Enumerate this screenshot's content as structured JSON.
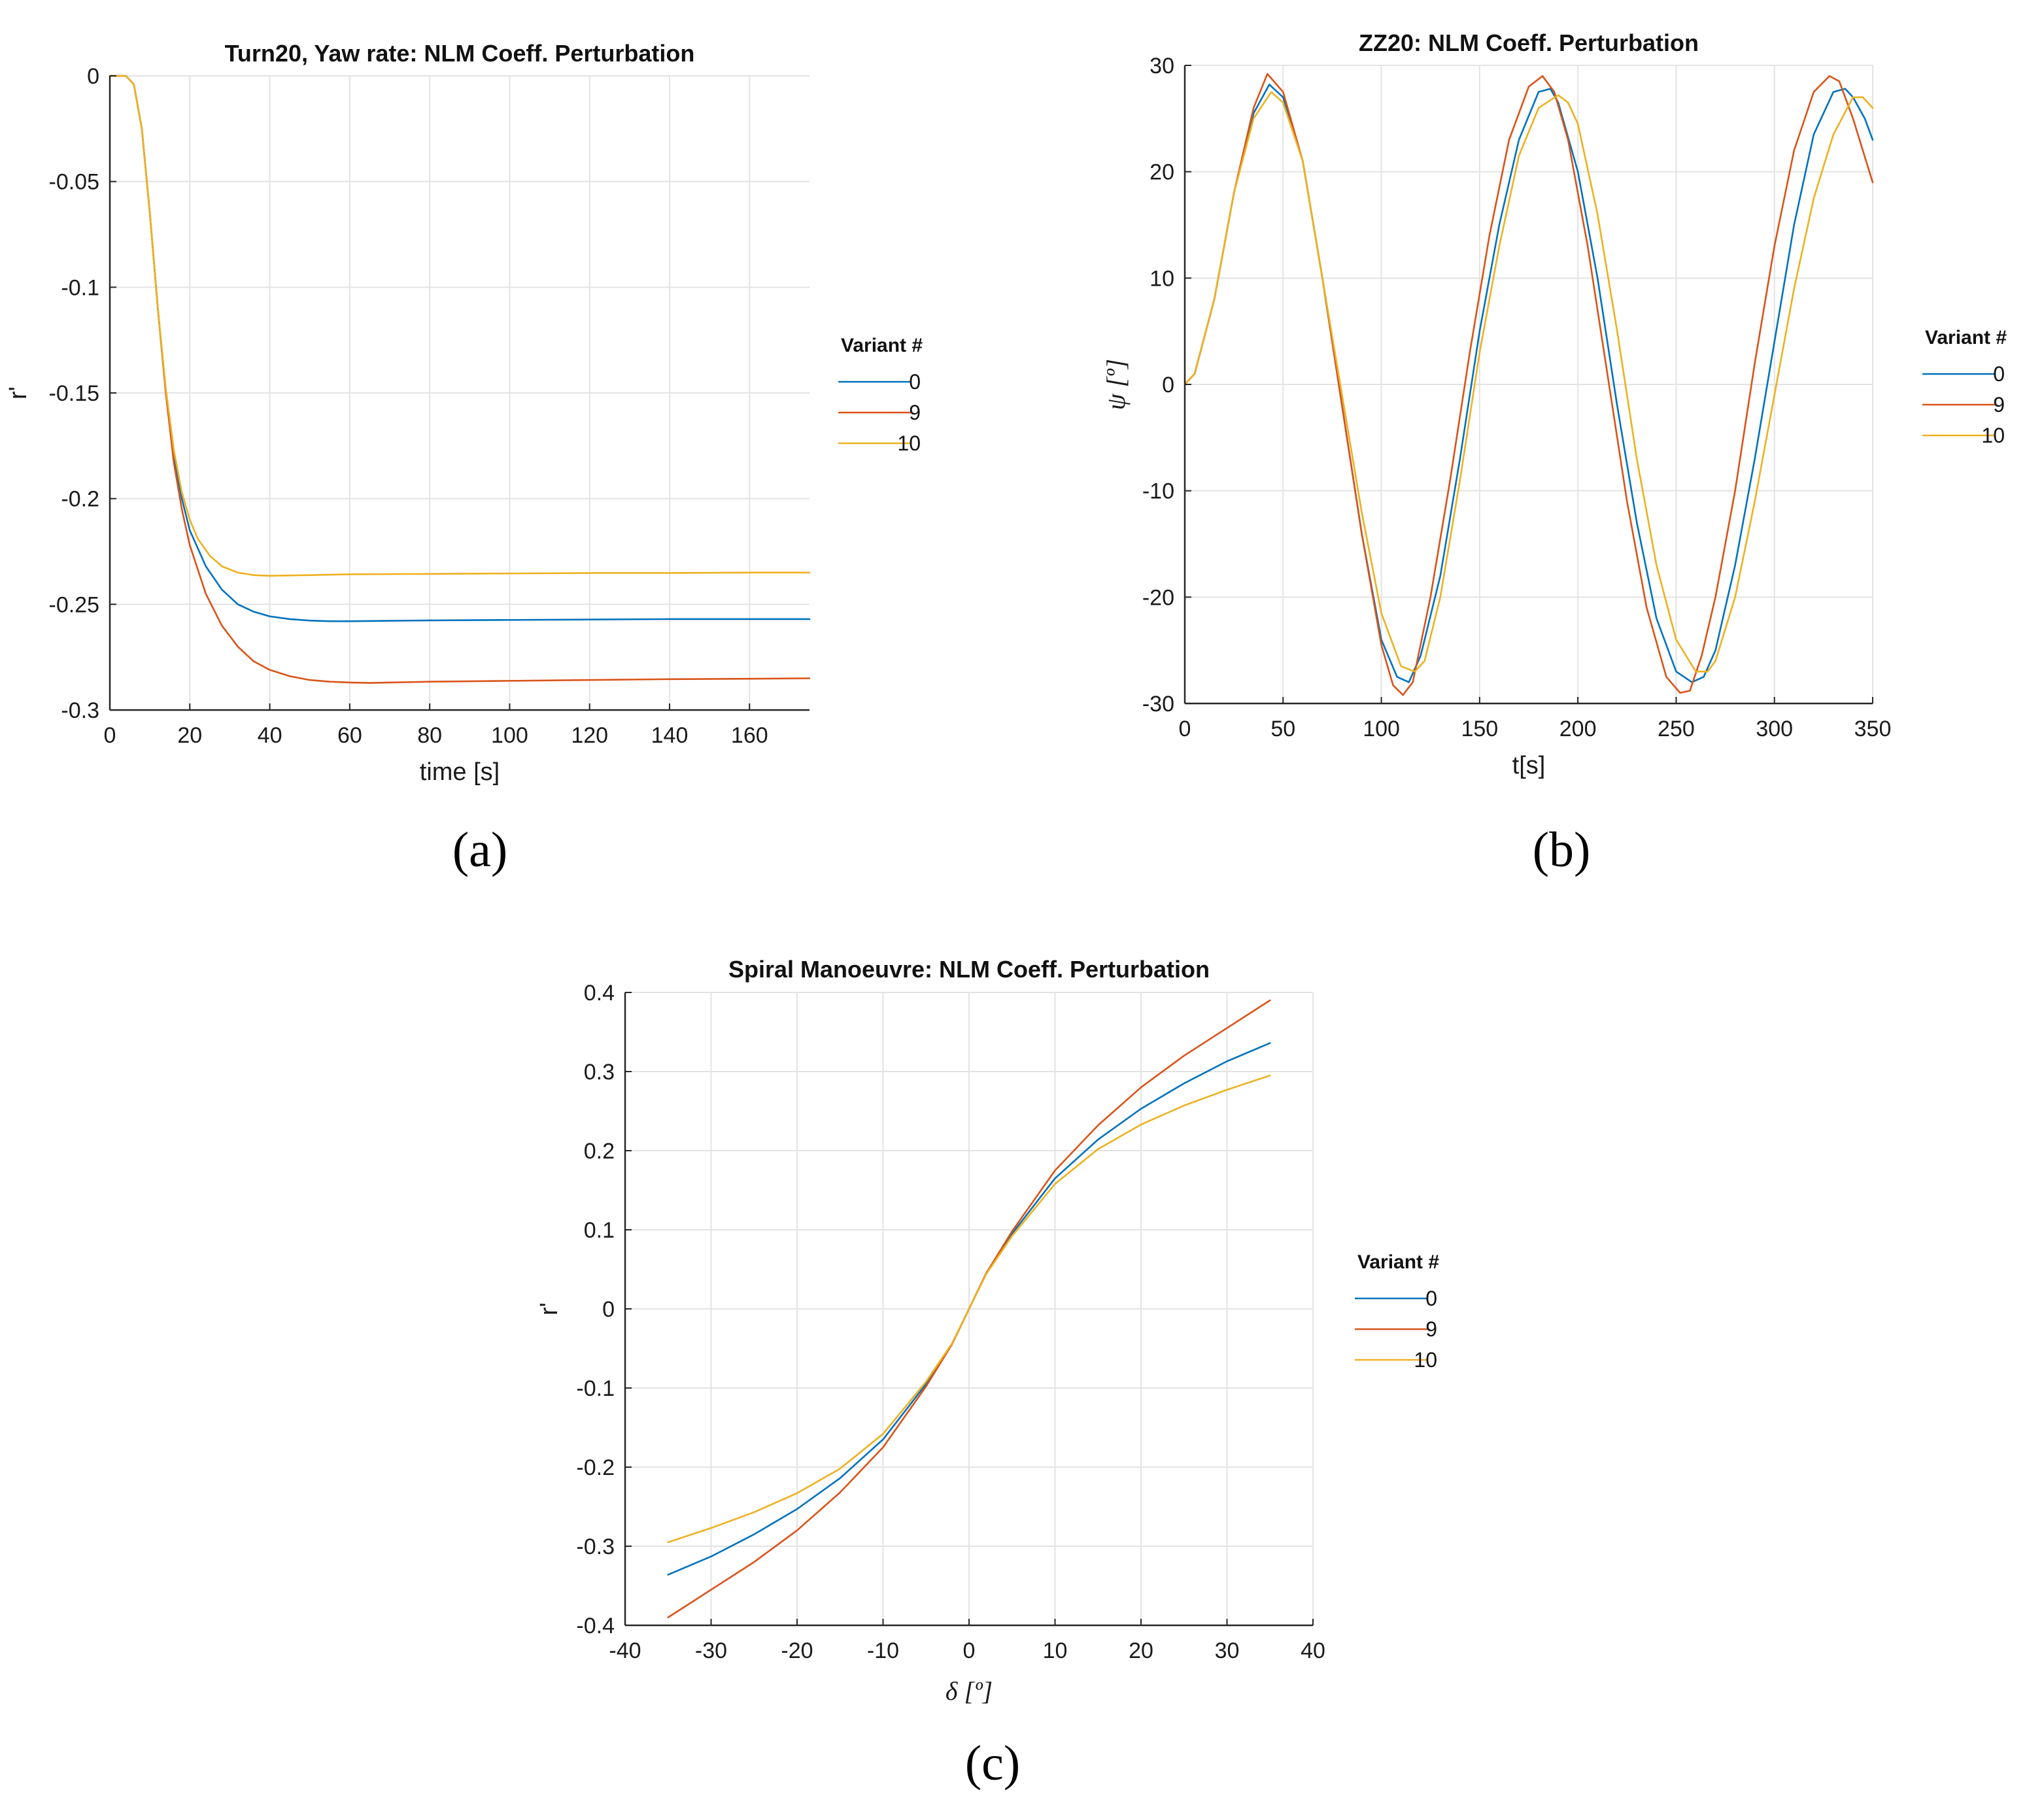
{
  "chart_data": [
    {
      "id": "a",
      "type": "line",
      "panel_tag": "(a)",
      "title": "Turn20, Yaw rate: NLM Coeff. Perturbation",
      "xlabel": "time [s]",
      "ylabel": "r'",
      "xlim": [
        0,
        175
      ],
      "ylim": [
        -0.3,
        0
      ],
      "xticks": [
        0,
        20,
        40,
        60,
        80,
        100,
        120,
        140,
        160
      ],
      "yticks": [
        0,
        -0.05,
        -0.1,
        -0.15,
        -0.2,
        -0.25,
        -0.3
      ],
      "xtick_labels": [
        "0",
        "20",
        "40",
        "60",
        "80",
        "100",
        "120",
        "140",
        "160"
      ],
      "ytick_labels": [
        "0",
        "-0.05",
        "-0.1",
        "-0.15",
        "-0.2",
        "-0.25",
        "-0.3"
      ],
      "grid": true,
      "legend": {
        "title": "Variant #",
        "placement": "outside-right"
      },
      "series": [
        {
          "name": "0",
          "color": "#0072BD",
          "x": [
            0,
            4,
            6,
            8,
            10,
            12,
            14,
            16,
            18,
            20,
            24,
            28,
            32,
            36,
            40,
            45,
            50,
            55,
            60,
            70,
            80,
            100,
            120,
            140,
            160,
            175
          ],
          "y": [
            0,
            0,
            -0.004,
            -0.025,
            -0.065,
            -0.11,
            -0.15,
            -0.18,
            -0.2,
            -0.215,
            -0.232,
            -0.243,
            -0.25,
            -0.2535,
            -0.2557,
            -0.257,
            -0.2577,
            -0.258,
            -0.258,
            -0.2578,
            -0.2576,
            -0.2574,
            -0.2572,
            -0.257,
            -0.257,
            -0.257
          ]
        },
        {
          "name": "9",
          "color": "#D95319",
          "x": [
            0,
            4,
            6,
            8,
            10,
            12,
            14,
            16,
            18,
            20,
            24,
            28,
            32,
            36,
            40,
            45,
            50,
            55,
            60,
            65,
            70,
            80,
            100,
            120,
            140,
            160,
            175
          ],
          "y": [
            0,
            0,
            -0.004,
            -0.025,
            -0.065,
            -0.11,
            -0.15,
            -0.183,
            -0.205,
            -0.222,
            -0.245,
            -0.26,
            -0.27,
            -0.277,
            -0.281,
            -0.284,
            -0.2858,
            -0.2866,
            -0.287,
            -0.2872,
            -0.287,
            -0.2866,
            -0.2862,
            -0.2858,
            -0.2854,
            -0.2852,
            -0.285
          ]
        },
        {
          "name": "10",
          "color": "#EDB120",
          "x": [
            0,
            4,
            6,
            8,
            10,
            12,
            14,
            16,
            18,
            20,
            22,
            25,
            28,
            32,
            36,
            40,
            50,
            60,
            80,
            100,
            120,
            140,
            160,
            175
          ],
          "y": [
            0,
            0,
            -0.004,
            -0.025,
            -0.065,
            -0.11,
            -0.148,
            -0.177,
            -0.197,
            -0.21,
            -0.219,
            -0.227,
            -0.232,
            -0.235,
            -0.2362,
            -0.2365,
            -0.2362,
            -0.2358,
            -0.2356,
            -0.2354,
            -0.2352,
            -0.2352,
            -0.235,
            -0.235
          ]
        }
      ]
    },
    {
      "id": "b",
      "type": "line",
      "panel_tag": "(b)",
      "title": "ZZ20: NLM Coeff. Perturbation",
      "xlabel": "t[s]",
      "ylabel": "ψ [º]",
      "xlim": [
        0,
        350
      ],
      "ylim": [
        -30,
        30
      ],
      "xticks": [
        0,
        50,
        100,
        150,
        200,
        250,
        300,
        350
      ],
      "yticks": [
        30,
        20,
        10,
        0,
        -10,
        -20,
        -30
      ],
      "xtick_labels": [
        "0",
        "50",
        "100",
        "150",
        "200",
        "250",
        "300",
        "350"
      ],
      "ytick_labels": [
        "30",
        "20",
        "10",
        "0",
        "-10",
        "-20",
        "-30"
      ],
      "grid": true,
      "legend": {
        "title": "Variant #",
        "placement": "outside-right"
      },
      "series": [
        {
          "name": "0",
          "color": "#0072BD",
          "x": [
            0,
            5,
            15,
            25,
            35,
            43,
            50,
            60,
            70,
            80,
            90,
            100,
            108,
            114,
            120,
            130,
            140,
            150,
            160,
            170,
            180,
            186,
            190,
            200,
            210,
            220,
            230,
            240,
            250,
            258,
            264,
            270,
            280,
            290,
            300,
            310,
            320,
            330,
            336,
            340,
            346,
            350
          ],
          "y": [
            0,
            1,
            8,
            18,
            25.5,
            28.2,
            27,
            21,
            10,
            -2,
            -14,
            -24,
            -27.5,
            -28,
            -25.5,
            -18,
            -7,
            5,
            15,
            23,
            27.5,
            27.8,
            26.5,
            20,
            10,
            -2,
            -13,
            -22,
            -27,
            -28,
            -27.5,
            -25,
            -17,
            -7,
            4,
            15,
            23.5,
            27.5,
            27.8,
            27,
            25,
            23
          ]
        },
        {
          "name": "9",
          "color": "#D95319",
          "x": [
            0,
            5,
            15,
            25,
            35,
            42,
            50,
            60,
            70,
            80,
            90,
            100,
            106,
            111,
            116,
            125,
            135,
            145,
            155,
            165,
            175,
            182,
            188,
            195,
            205,
            215,
            225,
            235,
            245,
            252,
            257,
            263,
            270,
            280,
            290,
            300,
            310,
            320,
            328,
            333,
            340,
            345,
            350
          ],
          "y": [
            0,
            1,
            8,
            18,
            26,
            29.2,
            27.5,
            21,
            10,
            -2,
            -14,
            -24.5,
            -28.3,
            -29.2,
            -28,
            -20,
            -9,
            3,
            14,
            23,
            28,
            29,
            27.5,
            23,
            13,
            1,
            -11,
            -21,
            -27.5,
            -29,
            -28.8,
            -25.5,
            -20,
            -10,
            2,
            13,
            22,
            27.5,
            29,
            28.5,
            25,
            22,
            19
          ]
        },
        {
          "name": "10",
          "color": "#EDB120",
          "x": [
            0,
            5,
            15,
            25,
            35,
            44,
            50,
            60,
            70,
            80,
            90,
            100,
            110,
            117,
            122,
            130,
            140,
            150,
            160,
            170,
            180,
            190,
            195,
            200,
            210,
            220,
            230,
            240,
            250,
            260,
            266,
            270,
            280,
            290,
            300,
            310,
            320,
            330,
            340,
            345,
            350
          ],
          "y": [
            0,
            1,
            8,
            18,
            25,
            27.5,
            26.5,
            21,
            10,
            -1,
            -12,
            -21.5,
            -26.5,
            -27,
            -26,
            -20,
            -9,
            3,
            13,
            21.5,
            26,
            27.2,
            26.5,
            24.5,
            16,
            5,
            -7,
            -17,
            -24,
            -27,
            -27,
            -26,
            -20,
            -11,
            -1,
            9,
            17.5,
            23.5,
            27,
            27,
            26
          ]
        }
      ]
    },
    {
      "id": "c",
      "type": "line",
      "panel_tag": "(c)",
      "title": "Spiral Manoeuvre: NLM Coeff. Perturbation",
      "xlabel": "δ [º]",
      "ylabel": "r'",
      "xlim": [
        -40,
        40
      ],
      "ylim": [
        -0.4,
        0.4
      ],
      "xticks": [
        -40,
        -30,
        -20,
        -10,
        0,
        10,
        20,
        30,
        40
      ],
      "yticks": [
        0.4,
        0.3,
        0.2,
        0.1,
        0,
        -0.1,
        -0.2,
        -0.3,
        -0.4
      ],
      "xtick_labels": [
        "-40",
        "-30",
        "-20",
        "-10",
        "0",
        "10",
        "20",
        "30",
        "40"
      ],
      "ytick_labels": [
        "0.4",
        "0.3",
        "0.2",
        "0.1",
        "0",
        "-0.1",
        "-0.2",
        "-0.3",
        "-0.4"
      ],
      "grid": true,
      "legend": {
        "title": "Variant #",
        "placement": "outside-right"
      },
      "series": [
        {
          "name": "0",
          "color": "#0072BD",
          "x": [
            -35,
            -30,
            -25,
            -20,
            -15,
            -10,
            -5,
            -2,
            0,
            2,
            5,
            10,
            15,
            20,
            25,
            30,
            35
          ],
          "y": [
            -0.336,
            -0.313,
            -0.285,
            -0.253,
            -0.214,
            -0.165,
            -0.095,
            -0.045,
            0,
            0.045,
            0.095,
            0.165,
            0.214,
            0.253,
            0.285,
            0.313,
            0.336
          ]
        },
        {
          "name": "9",
          "color": "#D95319",
          "x": [
            -35,
            -30,
            -25,
            -20,
            -15,
            -10,
            -5,
            -2,
            0,
            2,
            5,
            10,
            15,
            20,
            25,
            30,
            35
          ],
          "y": [
            -0.39,
            -0.355,
            -0.32,
            -0.28,
            -0.232,
            -0.175,
            -0.098,
            -0.045,
            0,
            0.045,
            0.098,
            0.175,
            0.232,
            0.28,
            0.32,
            0.355,
            0.39
          ]
        },
        {
          "name": "10",
          "color": "#EDB120",
          "x": [
            -35,
            -30,
            -25,
            -20,
            -15,
            -10,
            -5,
            -2,
            0,
            2,
            5,
            10,
            15,
            20,
            25,
            30,
            35
          ],
          "y": [
            -0.295,
            -0.277,
            -0.257,
            -0.233,
            -0.202,
            -0.158,
            -0.092,
            -0.044,
            0,
            0.044,
            0.092,
            0.158,
            0.202,
            0.233,
            0.257,
            0.277,
            0.295
          ]
        }
      ]
    }
  ]
}
